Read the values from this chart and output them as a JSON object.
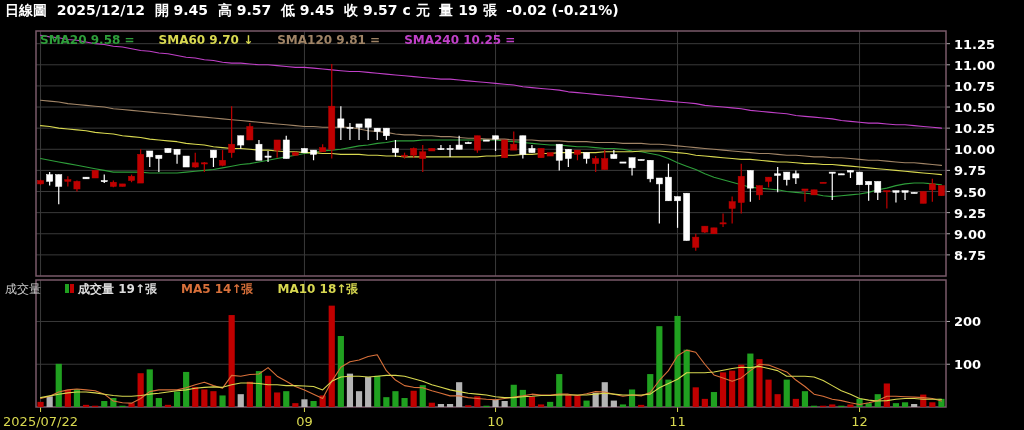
{
  "chart_data": [
    {
      "type": "candlestick",
      "title": "日線圖  2025/12/12  開 9.45  高 9.57  低 9.45  收 9.57 c 元  量 19 張  -0.02 (-0.21%)",
      "legend": "top left",
      "grid": true,
      "tick_labels": "y",
      "categories": [
        "2025/07/22",
        null,
        null,
        null,
        null,
        null,
        null,
        null,
        null,
        null,
        null,
        null,
        null,
        null,
        null,
        null,
        null,
        null,
        null,
        null,
        null,
        null,
        null,
        null,
        null,
        null,
        null,
        null,
        null,
        "09",
        null,
        null,
        null,
        null,
        null,
        null,
        null,
        null,
        null,
        null,
        null,
        null,
        null,
        null,
        null,
        null,
        null,
        null,
        null,
        null,
        "10",
        null,
        null,
        null,
        null,
        null,
        null,
        null,
        null,
        null,
        null,
        null,
        null,
        null,
        null,
        null,
        null,
        null,
        null,
        null,
        "11",
        null,
        null,
        null,
        null,
        null,
        null,
        null,
        null,
        null,
        null,
        null,
        null,
        null,
        null,
        null,
        null,
        null,
        null,
        null,
        "12",
        null,
        null,
        null,
        null,
        null,
        null,
        null,
        null,
        null
      ],
      "ylim": [
        8.5,
        11.4
      ],
      "yticks": [
        8.75,
        {
          "value": 9,
          "label": "9.00"
        },
        9.25,
        {
          "value": 9.5,
          "label": "9.50"
        },
        9.75,
        {
          "value": 10,
          "label": "10.00"
        },
        10.25,
        {
          "value": 10.5,
          "label": "10.50"
        },
        10.75,
        {
          "value": 11,
          "label": "11.00"
        },
        11.25
      ],
      "ohlc": [
        [
          9.59,
          9.64,
          9.58,
          9.63
        ],
        [
          9.7,
          9.73,
          9.57,
          9.62
        ],
        [
          9.7,
          9.7,
          9.35,
          9.56
        ],
        [
          9.62,
          9.68,
          9.56,
          9.64
        ],
        [
          9.53,
          9.63,
          9.5,
          9.62
        ],
        [
          9.67,
          9.67,
          9.65,
          9.65
        ],
        [
          9.66,
          9.75,
          9.66,
          9.75
        ],
        [
          9.63,
          9.7,
          9.6,
          9.62
        ],
        [
          9.56,
          9.63,
          9.55,
          9.61
        ],
        [
          9.56,
          9.59,
          9.56,
          9.59
        ],
        [
          9.63,
          9.7,
          9.61,
          9.68
        ],
        [
          9.6,
          10.0,
          9.6,
          9.94
        ],
        [
          9.98,
          9.98,
          9.79,
          9.91
        ],
        [
          9.93,
          9.93,
          9.73,
          9.89
        ],
        [
          10.01,
          10.01,
          9.96,
          9.96
        ],
        [
          10.0,
          10.0,
          9.83,
          9.94
        ],
        [
          9.92,
          9.92,
          9.79,
          9.79
        ],
        [
          9.79,
          9.96,
          9.78,
          9.84
        ],
        [
          9.83,
          9.85,
          9.73,
          9.84
        ],
        [
          9.99,
          9.99,
          9.79,
          9.9
        ],
        [
          9.81,
          9.99,
          9.8,
          9.87
        ],
        [
          9.96,
          10.51,
          9.9,
          10.06
        ],
        [
          10.16,
          10.16,
          10.01,
          10.05
        ],
        [
          10.11,
          10.31,
          10.11,
          10.27
        ],
        [
          10.06,
          10.11,
          9.87,
          9.87
        ],
        [
          9.92,
          9.98,
          9.85,
          9.91
        ],
        [
          9.99,
          10.11,
          9.9,
          10.11
        ],
        [
          10.11,
          10.16,
          9.89,
          9.89
        ],
        [
          9.93,
          9.97,
          9.92,
          9.96
        ],
        [
          10.01,
          10.01,
          9.96,
          9.96
        ],
        [
          9.99,
          9.99,
          9.87,
          9.94
        ],
        [
          9.97,
          10.06,
          9.97,
          10.02
        ],
        [
          10.0,
          11.01,
          9.89,
          10.51
        ],
        [
          10.36,
          10.51,
          10.11,
          10.26
        ],
        [
          10.26,
          10.31,
          10.11,
          10.25
        ],
        [
          10.3,
          10.3,
          10.11,
          10.26
        ],
        [
          10.36,
          10.36,
          10.11,
          10.26
        ],
        [
          10.25,
          10.25,
          10.11,
          10.21
        ],
        [
          10.25,
          10.25,
          10.11,
          10.16
        ],
        [
          10.01,
          10.11,
          9.91,
          9.96
        ],
        [
          9.92,
          9.96,
          9.89,
          9.93
        ],
        [
          9.93,
          10.02,
          9.9,
          10.01
        ],
        [
          9.89,
          10.05,
          9.73,
          9.97
        ],
        [
          9.98,
          10.01,
          9.98,
          10.01
        ],
        [
          10.01,
          10.05,
          9.99,
          10.0
        ],
        [
          10.01,
          10.05,
          9.91,
          10.0
        ],
        [
          10.05,
          10.16,
          10.0,
          10.0
        ],
        [
          10.08,
          10.09,
          10.07,
          10.07
        ],
        [
          9.99,
          10.16,
          9.96,
          10.16
        ],
        [
          10.11,
          10.11,
          10.1,
          10.1
        ],
        [
          10.16,
          10.16,
          9.98,
          10.12
        ],
        [
          9.9,
          10.11,
          9.9,
          10.11
        ],
        [
          9.99,
          10.21,
          9.99,
          10.06
        ],
        [
          10.16,
          10.16,
          9.89,
          9.94
        ],
        [
          10.01,
          10.05,
          9.96,
          9.96
        ],
        [
          9.9,
          10.01,
          9.9,
          10.01
        ],
        [
          9.92,
          9.96,
          9.92,
          9.96
        ],
        [
          10.06,
          10.06,
          9.75,
          9.87
        ],
        [
          10.0,
          10.0,
          9.79,
          9.89
        ],
        [
          9.94,
          9.99,
          9.87,
          9.99
        ],
        [
          9.96,
          9.96,
          9.83,
          9.89
        ],
        [
          9.83,
          9.92,
          9.73,
          9.89
        ],
        [
          9.76,
          9.99,
          9.76,
          9.89
        ],
        [
          9.94,
          9.99,
          9.89,
          9.89
        ],
        [
          9.85,
          9.85,
          9.84,
          9.84
        ],
        [
          9.9,
          9.9,
          9.69,
          9.78
        ],
        [
          9.88,
          9.88,
          9.87,
          9.87
        ],
        [
          9.87,
          9.87,
          9.61,
          9.65
        ],
        [
          9.66,
          9.66,
          9.12,
          9.59
        ],
        [
          9.67,
          9.83,
          9.39,
          9.39
        ],
        [
          9.44,
          9.44,
          9.07,
          9.39
        ],
        [
          9.48,
          9.48,
          8.92,
          8.92
        ],
        [
          8.84,
          9.0,
          8.8,
          8.96
        ],
        [
          9.02,
          9.09,
          9.01,
          9.09
        ],
        [
          9.0,
          9.07,
          9.0,
          9.07
        ],
        [
          9.12,
          9.24,
          9.08,
          9.13
        ],
        [
          9.3,
          9.44,
          9.12,
          9.38
        ],
        [
          9.37,
          9.83,
          9.24,
          9.68
        ],
        [
          9.75,
          9.75,
          9.38,
          9.54
        ],
        [
          9.46,
          9.57,
          9.4,
          9.57
        ],
        [
          9.62,
          9.67,
          9.55,
          9.67
        ],
        [
          9.71,
          9.79,
          9.49,
          9.69
        ],
        [
          9.73,
          9.73,
          9.57,
          9.64
        ],
        [
          9.71,
          9.75,
          9.59,
          9.66
        ],
        [
          9.51,
          9.53,
          9.38,
          9.53
        ],
        [
          9.46,
          9.52,
          9.46,
          9.52
        ],
        [
          9.6,
          9.61,
          9.6,
          9.61
        ],
        [
          9.73,
          9.73,
          9.4,
          9.72
        ],
        [
          9.71,
          9.71,
          9.7,
          9.7
        ],
        [
          9.75,
          9.75,
          9.66,
          9.73
        ],
        [
          9.73,
          9.73,
          9.58,
          9.58
        ],
        [
          9.62,
          9.62,
          9.39,
          9.58
        ],
        [
          9.62,
          9.62,
          9.4,
          9.49
        ],
        [
          9.5,
          9.51,
          9.3,
          9.51
        ],
        [
          9.51,
          9.51,
          9.37,
          9.49
        ],
        [
          9.51,
          9.51,
          9.4,
          9.49
        ],
        [
          9.49,
          9.49,
          9.48,
          9.48
        ],
        [
          9.36,
          9.5,
          9.36,
          9.5
        ],
        [
          9.52,
          9.65,
          9.38,
          9.59
        ],
        [
          9.45,
          9.57,
          9.45,
          9.57
        ]
      ],
      "colors": [
        "#c00000",
        "#ffffff",
        "#ffffff",
        "#c00000",
        "#c00000",
        "#ffffff",
        "#c00000",
        "#ffffff",
        "#c00000",
        "#c00000",
        "#c00000",
        "#c00000",
        "#ffffff",
        "#ffffff",
        "#ffffff",
        "#ffffff",
        "#ffffff",
        "#c00000",
        "#c00000",
        "#ffffff",
        "#c00000",
        "#c00000",
        "#ffffff",
        "#c00000",
        "#ffffff",
        "#ffffff",
        "#c00000",
        "#ffffff",
        "#c00000",
        "#ffffff",
        "#ffffff",
        "#c00000",
        "#c00000",
        "#ffffff",
        "#ffffff",
        "#ffffff",
        "#ffffff",
        "#ffffff",
        "#ffffff",
        "#ffffff",
        "#c00000",
        "#c00000",
        "#c00000",
        "#c00000",
        "#ffffff",
        "#ffffff",
        "#ffffff",
        "#ffffff",
        "#c00000",
        "#ffffff",
        "#ffffff",
        "#c00000",
        "#c00000",
        "#ffffff",
        "#ffffff",
        "#c00000",
        "#c00000",
        "#ffffff",
        "#ffffff",
        "#c00000",
        "#ffffff",
        "#c00000",
        "#c00000",
        "#ffffff",
        "#ffffff",
        "#ffffff",
        "#ffffff",
        "#ffffff",
        "#ffffff",
        "#ffffff",
        "#ffffff",
        "#ffffff",
        "#c00000",
        "#c00000",
        "#c00000",
        "#c00000",
        "#c00000",
        "#c00000",
        "#ffffff",
        "#c00000",
        "#c00000",
        "#ffffff",
        "#ffffff",
        "#ffffff",
        "#c00000",
        "#c00000",
        "#c00000",
        "#ffffff",
        "#ffffff",
        "#ffffff",
        "#ffffff",
        "#ffffff",
        "#ffffff",
        "#c00000",
        "#ffffff",
        "#ffffff",
        "#ffffff",
        "#c00000",
        "#c00000",
        "#c00000"
      ],
      "series": [
        {
          "name": "SMA20 9.58 =",
          "type": "line",
          "color": "#2e9e3a",
          "values": [
            9.89,
            9.87,
            9.85,
            9.83,
            9.81,
            9.79,
            9.77,
            9.75,
            9.73,
            9.73,
            9.73,
            9.73,
            9.72,
            9.72,
            9.72,
            9.72,
            9.73,
            9.74,
            9.75,
            9.76,
            9.78,
            9.8,
            9.82,
            9.83,
            9.85,
            9.87,
            9.89,
            9.91,
            9.93,
            9.95,
            9.96,
            9.98,
            9.99,
            10.0,
            10.02,
            10.04,
            10.05,
            10.07,
            10.08,
            10.1,
            10.1,
            10.1,
            10.11,
            10.11,
            10.11,
            10.11,
            10.11,
            10.11,
            10.11,
            10.11,
            10.11,
            10.1,
            10.09,
            10.08,
            10.07,
            10.06,
            10.05,
            10.05,
            10.04,
            10.03,
            10.03,
            10.02,
            10.01,
            10.01,
            10.0,
            9.98,
            9.97,
            9.95,
            9.93,
            9.89,
            9.84,
            9.8,
            9.76,
            9.71,
            9.67,
            9.64,
            9.61,
            9.58,
            9.55,
            9.54,
            9.53,
            9.52,
            9.5,
            9.49,
            9.48,
            9.47,
            9.45,
            9.44,
            9.45,
            9.46,
            9.47,
            9.49,
            9.52,
            9.54,
            9.57,
            9.59,
            9.6,
            9.6,
            9.59,
            9.58
          ]
        },
        {
          "name": "SMA60 9.70 ↓",
          "type": "line",
          "color": "#d8d850",
          "values": [
            10.28,
            10.27,
            10.25,
            10.24,
            10.23,
            10.22,
            10.2,
            10.19,
            10.18,
            10.16,
            10.15,
            10.14,
            10.12,
            10.11,
            10.1,
            10.09,
            10.07,
            10.06,
            10.05,
            10.03,
            10.02,
            10.01,
            10.01,
            10.0,
            9.99,
            9.99,
            9.98,
            9.97,
            9.97,
            9.96,
            9.96,
            9.95,
            9.95,
            9.94,
            9.94,
            9.94,
            9.93,
            9.93,
            9.92,
            9.92,
            9.91,
            9.91,
            9.91,
            9.91,
            9.91,
            9.91,
            9.91,
            9.91,
            9.91,
            9.92,
            9.92,
            9.93,
            9.93,
            9.94,
            9.94,
            9.95,
            9.95,
            9.96,
            9.96,
            9.96,
            9.96,
            9.96,
            9.97,
            9.97,
            9.97,
            9.97,
            9.98,
            9.98,
            9.98,
            9.97,
            9.96,
            9.95,
            9.93,
            9.92,
            9.91,
            9.9,
            9.89,
            9.88,
            9.88,
            9.87,
            9.86,
            9.85,
            9.85,
            9.84,
            9.83,
            9.83,
            9.82,
            9.82,
            9.81,
            9.8,
            9.79,
            9.78,
            9.77,
            9.76,
            9.75,
            9.74,
            9.73,
            9.72,
            9.71,
            9.7
          ]
        },
        {
          "name": "SMA120 9.81 =",
          "type": "line",
          "color": "#a08466",
          "values": [
            10.58,
            10.57,
            10.56,
            10.54,
            10.53,
            10.52,
            10.51,
            10.5,
            10.48,
            10.47,
            10.46,
            10.45,
            10.44,
            10.43,
            10.42,
            10.41,
            10.4,
            10.39,
            10.38,
            10.37,
            10.36,
            10.35,
            10.34,
            10.33,
            10.32,
            10.31,
            10.3,
            10.29,
            10.28,
            10.27,
            10.27,
            10.26,
            10.26,
            10.26,
            10.26,
            10.24,
            10.22,
            10.21,
            10.2,
            10.18,
            10.17,
            10.17,
            10.16,
            10.16,
            10.15,
            10.15,
            10.14,
            10.13,
            10.13,
            10.12,
            10.12,
            10.12,
            10.11,
            10.11,
            10.11,
            10.1,
            10.1,
            10.1,
            10.09,
            10.09,
            10.09,
            10.08,
            10.08,
            10.08,
            10.07,
            10.07,
            10.07,
            10.06,
            10.06,
            10.05,
            10.04,
            10.03,
            10.02,
            10.01,
            10.0,
            9.99,
            9.98,
            9.97,
            9.96,
            9.95,
            9.95,
            9.94,
            9.93,
            9.93,
            9.92,
            9.91,
            9.91,
            9.9,
            9.9,
            9.89,
            9.88,
            9.87,
            9.87,
            9.86,
            9.85,
            9.84,
            9.84,
            9.83,
            9.82,
            9.81
          ]
        },
        {
          "name": "SMA240 10.25 =",
          "type": "line",
          "color": "#c040c8",
          "values": [
            11.35,
            11.33,
            11.32,
            11.3,
            11.29,
            11.27,
            11.25,
            11.24,
            11.22,
            11.21,
            11.19,
            11.17,
            11.16,
            11.14,
            11.13,
            11.11,
            11.09,
            11.08,
            11.06,
            11.05,
            11.03,
            11.02,
            11.02,
            11.01,
            11.0,
            11.0,
            10.99,
            10.98,
            10.97,
            10.97,
            10.96,
            10.95,
            10.94,
            10.93,
            10.92,
            10.92,
            10.91,
            10.9,
            10.89,
            10.88,
            10.87,
            10.86,
            10.85,
            10.84,
            10.83,
            10.83,
            10.82,
            10.81,
            10.8,
            10.79,
            10.78,
            10.77,
            10.76,
            10.74,
            10.73,
            10.72,
            10.71,
            10.7,
            10.68,
            10.67,
            10.66,
            10.65,
            10.64,
            10.63,
            10.62,
            10.61,
            10.6,
            10.59,
            10.58,
            10.57,
            10.56,
            10.55,
            10.54,
            10.52,
            10.51,
            10.5,
            10.49,
            10.48,
            10.46,
            10.45,
            10.44,
            10.43,
            10.42,
            10.4,
            10.39,
            10.38,
            10.37,
            10.36,
            10.34,
            10.33,
            10.32,
            10.31,
            10.31,
            10.3,
            10.29,
            10.29,
            10.28,
            10.27,
            10.26,
            10.25
          ]
        }
      ]
    },
    {
      "type": "bar",
      "title": "成交量",
      "legend": "top left",
      "grid": true,
      "categories": [
        "2025/07/22",
        null,
        null,
        null,
        null,
        null,
        null,
        null,
        null,
        null,
        null,
        null,
        null,
        null,
        null,
        null,
        null,
        null,
        null,
        null,
        null,
        null,
        null,
        null,
        null,
        null,
        null,
        null,
        null,
        "09",
        null,
        null,
        null,
        null,
        null,
        null,
        null,
        null,
        null,
        null,
        null,
        null,
        null,
        null,
        null,
        null,
        null,
        null,
        null,
        null,
        "10",
        null,
        null,
        null,
        null,
        null,
        null,
        null,
        null,
        null,
        null,
        null,
        null,
        null,
        null,
        null,
        null,
        null,
        null,
        null,
        "11",
        null,
        null,
        null,
        null,
        null,
        null,
        null,
        null,
        null,
        null,
        null,
        null,
        null,
        null,
        null,
        null,
        null,
        null,
        null,
        "12",
        null,
        null,
        null,
        null,
        null,
        null,
        null,
        null,
        null
      ],
      "ylim": [
        0,
        297
      ],
      "yticks": [
        100,
        200
      ],
      "series": [
        {
          "name": "成交量 19↑張",
          "type": "bar",
          "values": [
            12,
            25,
            101,
            40,
            42,
            5,
            3,
            14,
            21,
            3,
            9,
            79,
            88,
            21,
            5,
            36,
            82,
            47,
            41,
            37,
            27,
            215,
            30,
            59,
            84,
            73,
            34,
            37,
            9,
            18,
            14,
            27,
            237,
            166,
            78,
            37,
            70,
            73,
            23,
            37,
            21,
            38,
            51,
            10,
            7,
            7,
            58,
            4,
            25,
            3,
            17,
            14,
            52,
            40,
            24,
            6,
            12,
            77,
            28,
            27,
            15,
            33,
            58,
            15,
            6,
            41,
            5,
            77,
            189,
            64,
            213,
            134,
            46,
            19,
            35,
            81,
            85,
            99,
            125,
            112,
            64,
            30,
            64,
            19,
            37,
            3,
            3,
            6,
            3,
            6,
            19,
            9,
            30,
            55,
            9,
            11,
            7,
            29,
            11,
            19
          ],
          "colors": [
            "#c00000",
            "#b4b4b4",
            "#20a020",
            "#c00000",
            "#20a020",
            "#c00000",
            "#c00000",
            "#20a020",
            "#20a020",
            "#20a020",
            "#c00000",
            "#c00000",
            "#20a020",
            "#20a020",
            "#c00000",
            "#20a020",
            "#20a020",
            "#c00000",
            "#c00000",
            "#c00000",
            "#20a020",
            "#c00000",
            "#b4b4b4",
            "#c00000",
            "#20a020",
            "#c00000",
            "#c00000",
            "#20a020",
            "#c00000",
            "#b4b4b4",
            "#20a020",
            "#c00000",
            "#c00000",
            "#20a020",
            "#b4b4b4",
            "#b4b4b4",
            "#b4b4b4",
            "#20a020",
            "#20a020",
            "#20a020",
            "#20a020",
            "#c00000",
            "#20a020",
            "#c00000",
            "#b4b4b4",
            "#b4b4b4",
            "#b4b4b4",
            "#c00000",
            "#c00000",
            "#20a020",
            "#b4b4b4",
            "#b4b4b4",
            "#20a020",
            "#20a020",
            "#c00000",
            "#c00000",
            "#20a020",
            "#20a020",
            "#c00000",
            "#c00000",
            "#20a020",
            "#b4b4b4",
            "#b4b4b4",
            "#b4b4b4",
            "#20a020",
            "#20a020",
            "#c00000",
            "#20a020",
            "#20a020",
            "#20a020",
            "#20a020",
            "#20a020",
            "#c00000",
            "#c00000",
            "#20a020",
            "#c00000",
            "#c00000",
            "#c00000",
            "#20a020",
            "#c00000",
            "#c00000",
            "#c00000",
            "#20a020",
            "#c00000",
            "#20a020",
            "#20a020",
            "#c00000",
            "#c00000",
            "#20a020",
            "#c00000",
            "#20a020",
            "#20a020",
            "#20a020",
            "#c00000",
            "#20a020",
            "#20a020",
            "#b4b4b4",
            "#c00000",
            "#c00000",
            "#20a020"
          ]
        },
        {
          "name": "MA5 14↑張",
          "type": "line",
          "color": "#d8703a",
          "values": [
            20,
            25,
            35,
            40,
            42,
            40,
            38,
            30,
            14,
            10,
            9,
            20,
            36,
            40,
            40,
            40,
            45,
            52,
            58,
            50,
            44,
            74,
            72,
            76,
            77,
            92,
            72,
            60,
            48,
            40,
            30,
            20,
            60,
            93,
            106,
            110,
            118,
            122,
            85,
            63,
            50,
            46,
            45,
            38,
            32,
            26,
            26,
            22,
            20,
            18,
            17,
            20,
            23,
            26,
            30,
            28,
            28,
            30,
            30,
            27,
            31,
            36,
            35,
            30,
            25,
            28,
            26,
            34,
            62,
            85,
            120,
            133,
            128,
            100,
            75,
            68,
            60,
            68,
            85,
            100,
            98,
            90,
            82,
            63,
            48,
            30,
            25,
            18,
            15,
            10,
            6,
            10,
            15,
            25,
            25,
            24,
            23,
            22,
            20,
            14
          ]
        },
        {
          "name": "MA10 18↑張",
          "type": "line",
          "color": "#d8d850",
          "values": [
            22,
            26,
            30,
            33,
            35,
            35,
            33,
            30,
            27,
            25,
            25,
            27,
            30,
            32,
            35,
            38,
            40,
            44,
            46,
            47,
            46,
            52,
            56,
            56,
            55,
            52,
            52,
            50,
            50,
            49,
            48,
            40,
            60,
            70,
            72,
            72,
            70,
            72,
            74,
            74,
            72,
            66,
            60,
            52,
            46,
            40,
            36,
            32,
            30,
            28,
            24,
            22,
            22,
            24,
            25,
            27,
            27,
            28,
            28,
            28,
            28,
            30,
            32,
            30,
            28,
            28,
            28,
            30,
            45,
            55,
            65,
            80,
            80,
            80,
            82,
            86,
            90,
            93,
            92,
            95,
            90,
            85,
            72,
            72,
            72,
            70,
            62,
            50,
            38,
            30,
            20,
            16,
            14,
            15,
            18,
            20,
            20,
            18,
            18,
            18
          ]
        }
      ]
    }
  ]
}
